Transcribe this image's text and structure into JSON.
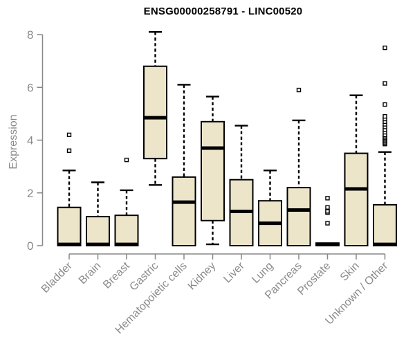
{
  "chart_data": {
    "type": "boxplot",
    "title": "ENSG00000258791 - LINC00520",
    "xlabel": "",
    "ylabel": "Expression",
    "ylim": [
      0,
      8
    ],
    "yticks": [
      0,
      2,
      4,
      6,
      8
    ],
    "grid": "off",
    "categories": [
      "Bladder",
      "Brain",
      "Breast",
      "Gastric",
      "Hematopoietic cells",
      "Kidney",
      "Liver",
      "Lung",
      "Pancreas",
      "Prostate",
      "Skin",
      "Unknown / Other"
    ],
    "boxes": [
      {
        "category": "Bladder",
        "whisker_low": 0,
        "q1": 0,
        "median": 0.05,
        "q3": 1.45,
        "whisker_high": 2.85,
        "outliers": [
          3.6,
          4.2
        ]
      },
      {
        "category": "Brain",
        "whisker_low": 0,
        "q1": 0,
        "median": 0.05,
        "q3": 1.1,
        "whisker_high": 2.4,
        "outliers": []
      },
      {
        "category": "Breast",
        "whisker_low": 0,
        "q1": 0,
        "median": 0.05,
        "q3": 1.15,
        "whisker_high": 2.1,
        "outliers": [
          3.25
        ]
      },
      {
        "category": "Gastric",
        "whisker_low": 2.3,
        "q1": 3.3,
        "median": 4.85,
        "q3": 6.8,
        "whisker_high": 8.1,
        "outliers": []
      },
      {
        "category": "Hematopoietic cells",
        "whisker_low": 0,
        "q1": 0,
        "median": 1.65,
        "q3": 2.6,
        "whisker_high": 6.1,
        "outliers": []
      },
      {
        "category": "Kidney",
        "whisker_low": 0.05,
        "q1": 0.95,
        "median": 3.7,
        "q3": 4.7,
        "whisker_high": 5.65,
        "outliers": []
      },
      {
        "category": "Liver",
        "whisker_low": 0,
        "q1": 0,
        "median": 1.3,
        "q3": 2.5,
        "whisker_high": 4.55,
        "outliers": []
      },
      {
        "category": "Lung",
        "whisker_low": 0,
        "q1": 0,
        "median": 0.85,
        "q3": 1.7,
        "whisker_high": 2.85,
        "outliers": []
      },
      {
        "category": "Pancreas",
        "whisker_low": 0,
        "q1": 0,
        "median": 1.35,
        "q3": 2.2,
        "whisker_high": 4.75,
        "outliers": [
          5.9
        ]
      },
      {
        "category": "Prostate",
        "whisker_low": 0,
        "q1": 0,
        "median": 0.05,
        "q3": 0.1,
        "whisker_high": 0.1,
        "outliers": [
          0.85,
          1.25,
          1.3,
          1.45,
          1.8
        ]
      },
      {
        "category": "Skin",
        "whisker_low": 0,
        "q1": 0,
        "median": 2.15,
        "q3": 3.5,
        "whisker_high": 5.7,
        "outliers": []
      },
      {
        "category": "Unknown / Other",
        "whisker_low": 0,
        "q1": 0,
        "median": 0.05,
        "q3": 1.55,
        "whisker_high": 3.55,
        "outliers": [
          3.85,
          3.9,
          3.95,
          4.0,
          4.05,
          4.1,
          4.15,
          4.2,
          4.3,
          4.4,
          4.5,
          4.6,
          4.7,
          4.8,
          4.9,
          5.35,
          6.15,
          7.5
        ]
      }
    ],
    "colors": {
      "box_fill": "#ece5c9",
      "box_border": "#000000",
      "median": "#000000",
      "whisker": "#000000",
      "outlier_fill": "#ffffff",
      "axis": "#878787",
      "tick_label": "#8a8a8a",
      "title": "#000000",
      "background": "#ffffff"
    }
  }
}
